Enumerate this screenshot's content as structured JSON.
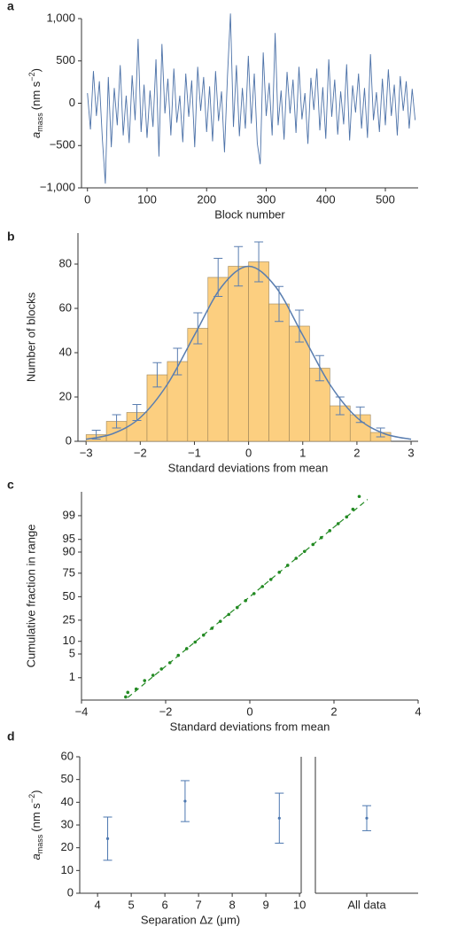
{
  "chart_data": [
    {
      "type": "line",
      "panel": "a",
      "xlabel": "Block number",
      "ylabel": {
        "symbol": "a",
        "subscript": "mass",
        "unit": "(nm s",
        "exponent": "−2",
        "close": ")"
      },
      "color": "#4d72a8",
      "xlim": [
        -10,
        555
      ],
      "ylim": [
        -1000,
        1000
      ],
      "xticks": [
        0,
        100,
        200,
        300,
        400,
        500
      ],
      "yticks": [
        {
          "value": -1000,
          "label": "−1,000"
        },
        {
          "value": -500,
          "label": "−500"
        },
        0,
        500,
        {
          "value": 1000,
          "label": "1,000"
        }
      ],
      "x": [
        0,
        5,
        10,
        15,
        20,
        25,
        30,
        35,
        40,
        45,
        50,
        55,
        60,
        65,
        70,
        75,
        80,
        85,
        90,
        95,
        100,
        105,
        110,
        115,
        120,
        125,
        130,
        135,
        140,
        145,
        150,
        155,
        160,
        165,
        170,
        175,
        180,
        185,
        190,
        195,
        200,
        205,
        210,
        215,
        220,
        225,
        230,
        235,
        240,
        245,
        250,
        255,
        260,
        265,
        270,
        275,
        280,
        285,
        290,
        295,
        300,
        305,
        310,
        315,
        320,
        325,
        330,
        335,
        340,
        345,
        350,
        355,
        360,
        365,
        370,
        375,
        380,
        385,
        390,
        395,
        400,
        405,
        410,
        415,
        420,
        425,
        430,
        435,
        440,
        445,
        450,
        455,
        460,
        465,
        470,
        475,
        480,
        485,
        490,
        495,
        500,
        505,
        510,
        515,
        520,
        525,
        530,
        535,
        540,
        545,
        550
      ],
      "values": [
        120,
        -310,
        380,
        -150,
        260,
        -420,
        -950,
        310,
        -520,
        180,
        -260,
        450,
        -380,
        90,
        -470,
        330,
        -200,
        760,
        -340,
        220,
        -410,
        150,
        -280,
        520,
        -630,
        700,
        -120,
        290,
        -380,
        410,
        -230,
        90,
        -460,
        350,
        -160,
        270,
        -520,
        430,
        -90,
        310,
        -340,
        200,
        -450,
        380,
        -210,
        140,
        -580,
        320,
        1060,
        -280,
        450,
        -390,
        180,
        -300,
        560,
        -240,
        350,
        -470,
        -720,
        600,
        -150,
        240,
        -380,
        830,
        -260,
        150,
        -430,
        370,
        -120,
        280,
        -350,
        430,
        -190,
        120,
        -480,
        300,
        -80,
        410,
        -320,
        190,
        -420,
        520,
        -160,
        280,
        -370,
        140,
        -250,
        460,
        -440,
        210,
        -110,
        350,
        -300,
        180,
        -410,
        580,
        -200,
        130,
        -340,
        290,
        -260,
        400,
        -150,
        220,
        -380,
        320,
        -90,
        260,
        -300,
        170,
        -200
      ]
    },
    {
      "type": "histogram",
      "panel": "b",
      "xlabel": "Standard deviations from mean",
      "ylabel": "Number of blocks",
      "color": "#fccf80",
      "edge_color": "#9c8458",
      "fit_color": "#5a7eb0",
      "xlim": [
        -3.15,
        3.13
      ],
      "ylim": [
        0,
        94
      ],
      "xticks": [
        {
          "value": -3,
          "label": "−3"
        },
        {
          "value": -2,
          "label": "−2"
        },
        {
          "value": -1,
          "label": "−1"
        },
        0,
        1,
        2,
        3
      ],
      "yticks": [
        0,
        20,
        40,
        60,
        80
      ],
      "bins": [
        -3,
        -2.625,
        -2.25,
        -1.875,
        -1.5,
        -1.125,
        -0.75,
        -0.375,
        0,
        0.375,
        0.75,
        1.125,
        1.5,
        1.875,
        2.25,
        2.625
      ],
      "counts": [
        3,
        9,
        13,
        30,
        36,
        51,
        74,
        79,
        81,
        62,
        52,
        33,
        16,
        12,
        4
      ],
      "errors": [
        2,
        3,
        3.6,
        5.5,
        6,
        7,
        8.6,
        8.9,
        9,
        7.9,
        7.2,
        5.7,
        4,
        3.5,
        2
      ],
      "curve": {
        "x": [
          -3,
          -2.5,
          -2,
          -1.5,
          -1,
          -0.5,
          0,
          0.5,
          1,
          1.5,
          2,
          2.5,
          3
        ],
        "values": [
          0.9,
          3.5,
          10.7,
          25.7,
          47.9,
          69.7,
          79,
          69.7,
          47.9,
          25.7,
          10.7,
          3.5,
          0.9
        ]
      }
    },
    {
      "type": "scatter",
      "panel": "c",
      "xlabel": "Standard deviations from mean",
      "ylabel": "Cumulative fraction in range",
      "color": "#238a23",
      "yscale": "probit",
      "xlim": [
        -4,
        4
      ],
      "ylim": [
        0.15,
        99.87
      ],
      "xticks": [
        {
          "value": -4,
          "label": "−4"
        },
        {
          "value": -2,
          "label": "−2"
        },
        0,
        2,
        4
      ],
      "yticks": [
        1,
        5,
        10,
        25,
        50,
        75,
        90,
        95,
        99
      ],
      "x": [
        -2.95,
        -2.9,
        -2.7,
        -2.5,
        -2.3,
        -2.1,
        -1.9,
        -1.7,
        -1.5,
        -1.3,
        -1.1,
        -0.9,
        -0.7,
        -0.5,
        -0.3,
        -0.1,
        0.1,
        0.3,
        0.5,
        0.7,
        0.9,
        1.1,
        1.3,
        1.5,
        1.7,
        1.9,
        2.1,
        2.3,
        2.45,
        2.6
      ],
      "values": [
        0.2,
        0.3,
        0.4,
        0.8,
        1.2,
        1.9,
        2.9,
        4.6,
        6.8,
        9.6,
        13.5,
        18.2,
        24,
        30.5,
        37.8,
        45.5,
        53.5,
        61.5,
        69,
        75.8,
        81.6,
        86.5,
        90.3,
        93.3,
        95.5,
        97.1,
        98.2,
        98.9,
        99.4,
        99.8
      ],
      "reference": {
        "x": [
          -2.9,
          2.8
        ],
        "values": [
          0.19,
          99.74
        ]
      }
    },
    {
      "type": "errorbar",
      "panel": "d",
      "xlabel": "Separation Δz (μm)",
      "ylabel": {
        "symbol": "a",
        "subscript": "mass",
        "unit": "(nm s",
        "exponent": "−2",
        "close": ")"
      },
      "color": "#4d78b0",
      "xlim": [
        3.47,
        10.05
      ],
      "ylim": [
        0,
        60
      ],
      "xticks": [
        4,
        5,
        6,
        7,
        8,
        9,
        10
      ],
      "yticks": [
        0,
        10,
        20,
        30,
        40,
        50,
        60
      ],
      "x": [
        4.3,
        6.6,
        9.4
      ],
      "values": [
        24,
        40.5,
        33
      ],
      "errors": [
        9.5,
        9,
        11
      ]
    },
    {
      "type": "errorbar-category",
      "color": "#4d78b0",
      "ylim": [
        0,
        60
      ],
      "categories": [
        "All data"
      ],
      "values": [
        33
      ],
      "errors": [
        5.5
      ]
    }
  ]
}
